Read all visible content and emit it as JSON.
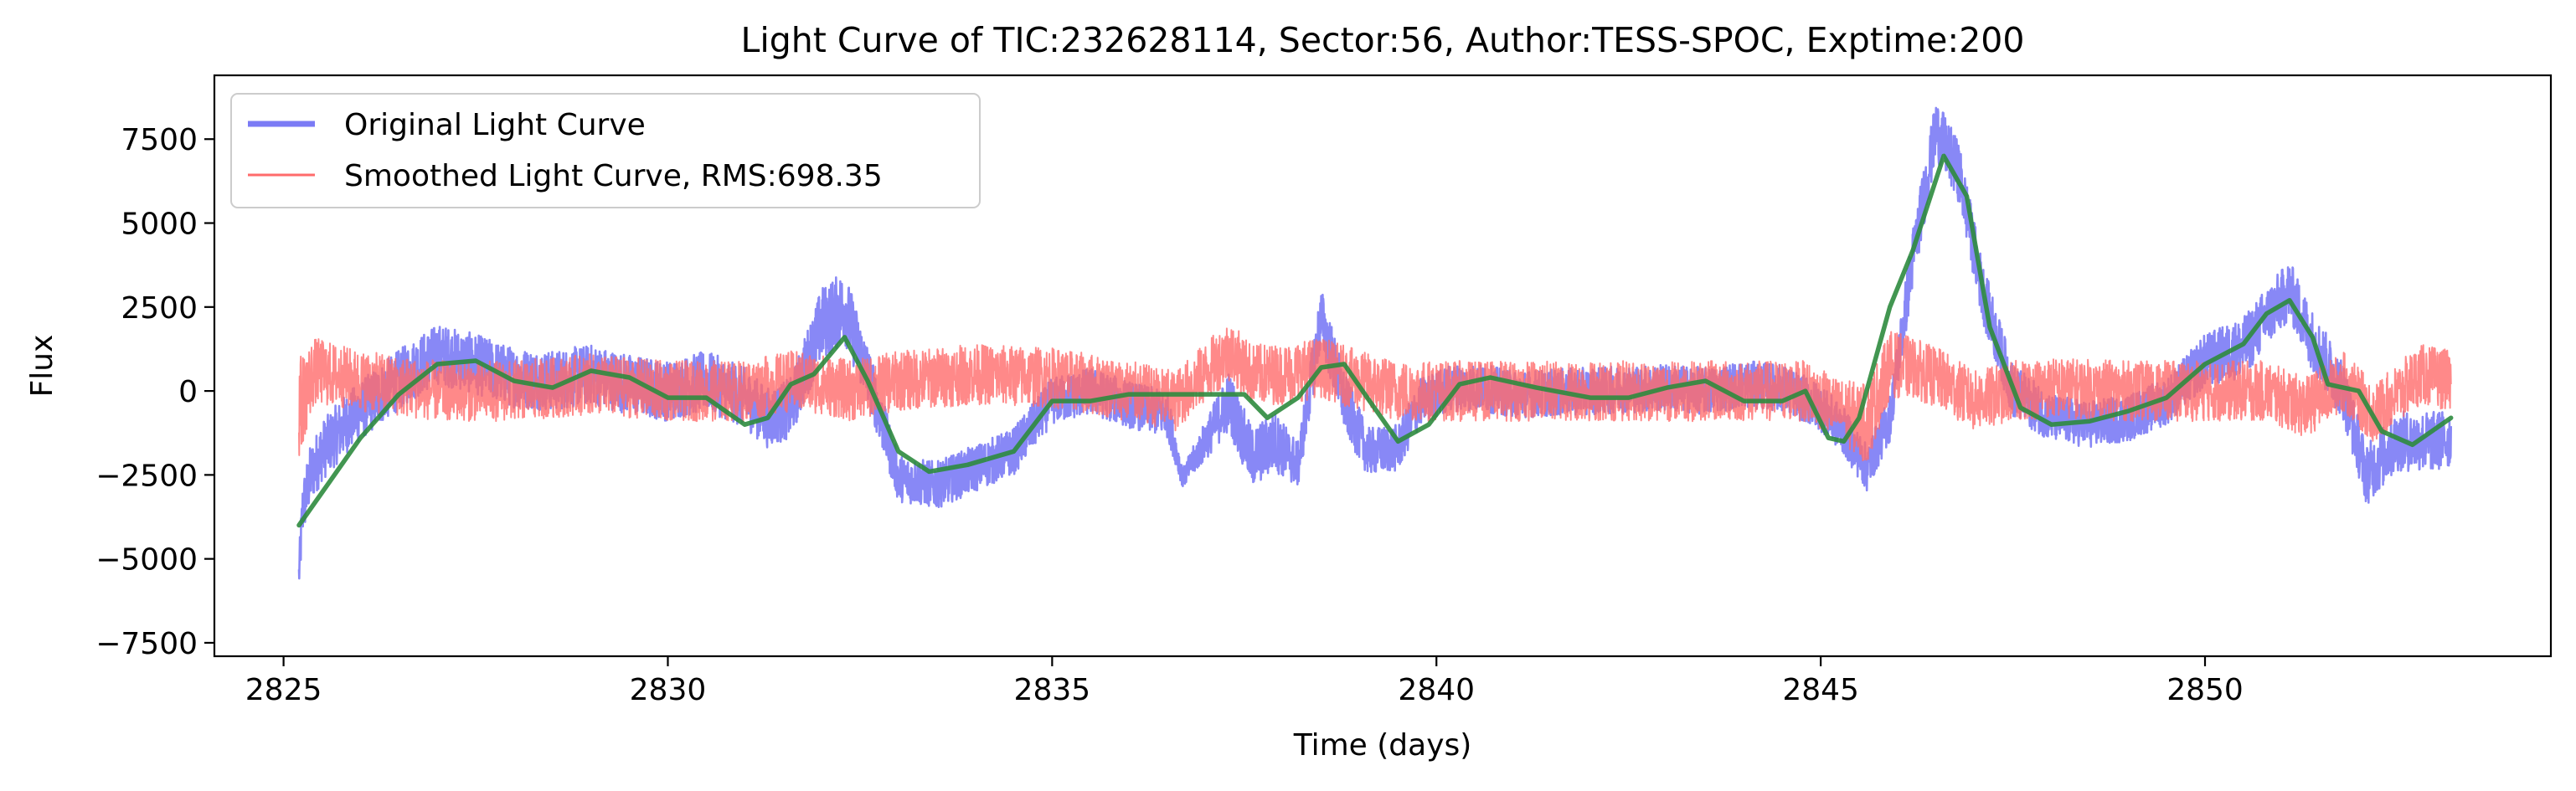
{
  "chart_data": {
    "type": "line",
    "title": "Light Curve of TIC:232628114, Sector:56, Author:TESS-SPOC, Exptime:200",
    "xlabel": "Time (days)",
    "ylabel": "Flux",
    "xlim": [
      2824.1,
      2854.5
    ],
    "ylim": [
      -7900,
      9400
    ],
    "xticks": [
      2825,
      2830,
      2835,
      2840,
      2845,
      2850
    ],
    "yticks": [
      -7500,
      -5000,
      -2500,
      0,
      2500,
      5000,
      7500
    ],
    "grid": false,
    "legend_position": "top-left",
    "series": [
      {
        "name": "Original Light Curve",
        "color": "#7b7bf5",
        "style": "noisy band",
        "x": [
          2825.2,
          2825.25,
          2825.35,
          2825.5,
          2825.8,
          2826.2,
          2826.6,
          2827.0,
          2827.5,
          2828.0,
          2828.5,
          2829.0,
          2829.5,
          2830.0,
          2830.5,
          2831.0,
          2831.3,
          2831.6,
          2832.0,
          2832.3,
          2832.6,
          2833.0,
          2833.5,
          2834.0,
          2834.5,
          2835.0,
          2835.5,
          2836.0,
          2836.5,
          2836.7,
          2837.3,
          2837.6,
          2837.9,
          2838.2,
          2838.5,
          2838.8,
          2839.1,
          2839.5,
          2839.8,
          2840.2,
          2840.6,
          2841.0,
          2842.0,
          2843.0,
          2843.5,
          2844.0,
          2844.5,
          2845.0,
          2845.3,
          2845.6,
          2845.9,
          2846.2,
          2846.5,
          2846.8,
          2847.1,
          2847.5,
          2848.0,
          2848.5,
          2849.0,
          2849.5,
          2850.0,
          2850.5,
          2850.8,
          2851.1,
          2851.4,
          2851.8,
          2852.1,
          2852.5,
          2853.0,
          2853.2
        ],
        "y": [
          -5500,
          -3500,
          -2500,
          -1800,
          -1000,
          -200,
          500,
          1100,
          800,
          400,
          300,
          500,
          200,
          0,
          300,
          -200,
          -800,
          -500,
          2000,
          2500,
          500,
          -2600,
          -2800,
          -2300,
          -1800,
          -300,
          0,
          -400,
          -700,
          -2600,
          -300,
          -2000,
          -1500,
          -2200,
          2200,
          -300,
          -1800,
          -1700,
          -300,
          100,
          100,
          -100,
          0,
          100,
          0,
          200,
          100,
          -500,
          -1200,
          -2300,
          -800,
          4000,
          7800,
          6500,
          3000,
          0,
          -800,
          -1000,
          -800,
          -300,
          900,
          1300,
          2200,
          3000,
          1500,
          0,
          -2500,
          -1500,
          -1500,
          -1400
        ],
        "band": [
          600,
          900,
          900,
          900,
          900,
          900,
          900,
          900,
          900,
          900,
          900,
          900,
          900,
          900,
          900,
          900,
          900,
          900,
          1100,
          1100,
          900,
          700,
          700,
          700,
          700,
          700,
          700,
          700,
          700,
          300,
          900,
          900,
          900,
          700,
          900,
          900,
          700,
          700,
          700,
          700,
          700,
          700,
          700,
          700,
          700,
          700,
          700,
          700,
          700,
          700,
          700,
          900,
          900,
          900,
          900,
          800,
          700,
          700,
          700,
          700,
          800,
          900,
          900,
          900,
          900,
          900,
          900,
          900,
          900,
          900
        ]
      },
      {
        "name": "Smoothed Light Curve, RMS:698.35",
        "color": "#ff6b6b",
        "style": "noisy band",
        "x": [
          2825.2,
          2825.4,
          2826.0,
          2827.0,
          2828.0,
          2829.0,
          2830.0,
          2831.0,
          2831.6,
          2832.0,
          2832.4,
          2833.0,
          2834.0,
          2835.0,
          2836.0,
          2836.6,
          2837.3,
          2837.6,
          2838.0,
          2838.5,
          2839.0,
          2839.5,
          2840.0,
          2841.0,
          2842.0,
          2843.0,
          2844.0,
          2844.8,
          2845.2,
          2845.6,
          2845.9,
          2846.2,
          2846.6,
          2847.0,
          2847.5,
          2848.0,
          2849.0,
          2850.0,
          2850.8,
          2851.3,
          2851.8,
          2852.2,
          2852.8,
          2853.2
        ],
        "y": [
          -500,
          600,
          300,
          0,
          0,
          200,
          0,
          0,
          300,
          200,
          0,
          300,
          500,
          400,
          0,
          -300,
          1200,
          500,
          500,
          700,
          300,
          0,
          0,
          0,
          0,
          0,
          0,
          0,
          -500,
          -1000,
          800,
          700,
          300,
          -300,
          0,
          100,
          0,
          0,
          0,
          -500,
          300,
          -700,
          500,
          300
        ],
        "band": [
          1500,
          1000,
          900,
          900,
          900,
          900,
          900,
          900,
          900,
          900,
          900,
          900,
          900,
          900,
          900,
          900,
          900,
          900,
          900,
          900,
          900,
          900,
          900,
          900,
          900,
          900,
          900,
          900,
          900,
          1200,
          1000,
          900,
          900,
          900,
          900,
          900,
          900,
          900,
          900,
          900,
          900,
          900,
          900,
          900
        ]
      },
      {
        "name": "",
        "color": "#2e8b3e",
        "style": "line",
        "x": [
          2825.2,
          2825.6,
          2826.0,
          2826.5,
          2827.0,
          2827.5,
          2828.0,
          2828.5,
          2829.0,
          2829.5,
          2830.0,
          2830.5,
          2831.0,
          2831.3,
          2831.6,
          2831.9,
          2832.3,
          2832.6,
          2833.0,
          2833.4,
          2833.9,
          2834.5,
          2835.0,
          2835.5,
          2836.0,
          2836.5,
          2837.0,
          2837.5,
          2837.8,
          2838.2,
          2838.5,
          2838.8,
          2839.1,
          2839.5,
          2839.9,
          2840.3,
          2840.7,
          2841.3,
          2842.0,
          2842.5,
          2843.0,
          2843.5,
          2844.0,
          2844.5,
          2844.8,
          2845.1,
          2845.3,
          2845.5,
          2845.9,
          2846.2,
          2846.6,
          2846.9,
          2847.2,
          2847.6,
          2848.0,
          2848.5,
          2849.0,
          2849.5,
          2850.0,
          2850.5,
          2850.8,
          2851.1,
          2851.4,
          2851.6,
          2852.0,
          2852.3,
          2852.7,
          2853.2
        ],
        "y": [
          -4000,
          -2700,
          -1400,
          -100,
          800,
          900,
          300,
          100,
          600,
          400,
          -200,
          -200,
          -1000,
          -800,
          200,
          500,
          1600,
          300,
          -1800,
          -2400,
          -2200,
          -1800,
          -300,
          -300,
          -100,
          -100,
          -100,
          -100,
          -800,
          -200,
          700,
          800,
          -200,
          -1500,
          -1000,
          200,
          400,
          100,
          -200,
          -200,
          100,
          300,
          -300,
          -300,
          0,
          -1400,
          -1500,
          -800,
          2500,
          4200,
          7000,
          5800,
          1900,
          -500,
          -1000,
          -900,
          -600,
          -200,
          800,
          1400,
          2300,
          2700,
          1600,
          200,
          0,
          -1200,
          -1600,
          -800
        ]
      }
    ]
  }
}
